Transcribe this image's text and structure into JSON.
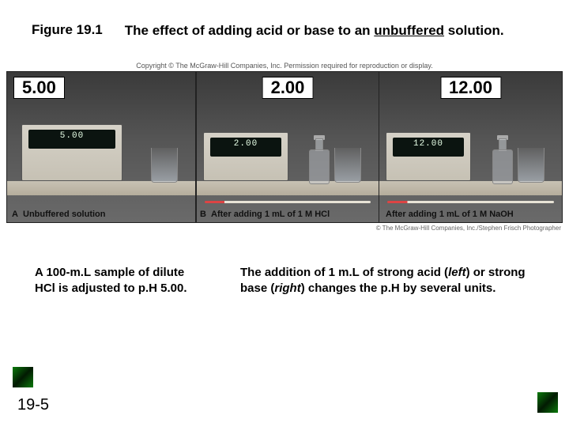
{
  "figure": {
    "number": "Figure 19.1",
    "title_prefix": "The effect of adding acid or base to an ",
    "title_underlined": "unbuffered",
    "title_suffix": " solution."
  },
  "copyright": "Copyright © The McGraw-Hill Companies, Inc. Permission required for reproduction or display.",
  "credit": "© The McGraw-Hill Companies, Inc./Stephen Frisch Photographer",
  "panels": {
    "a": {
      "ph": "5.00",
      "readout": "5.00",
      "caption": "Unbuffered solution"
    },
    "b": {
      "ph": "2.00",
      "readout": "2.00",
      "caption": "After adding 1 mL of 1 M HCl"
    },
    "c": {
      "ph": "12.00",
      "readout": "12.00",
      "caption": "After adding 1 mL of 1 M NaOH"
    }
  },
  "desc": {
    "left": "A 100-m.L sample of dilute HCl is adjusted to p.H 5.00.",
    "right_1": "The addition of 1 m.L of strong acid (",
    "right_left": "left",
    "right_2": ") or strong base (",
    "right_right": "right",
    "right_3": ") changes the p.H by several units."
  },
  "slide": "19-5",
  "colors": {
    "ph_box_bg": "#ffffff",
    "meter_bg": "#cec8ba",
    "bench": "#bcb4a2"
  }
}
